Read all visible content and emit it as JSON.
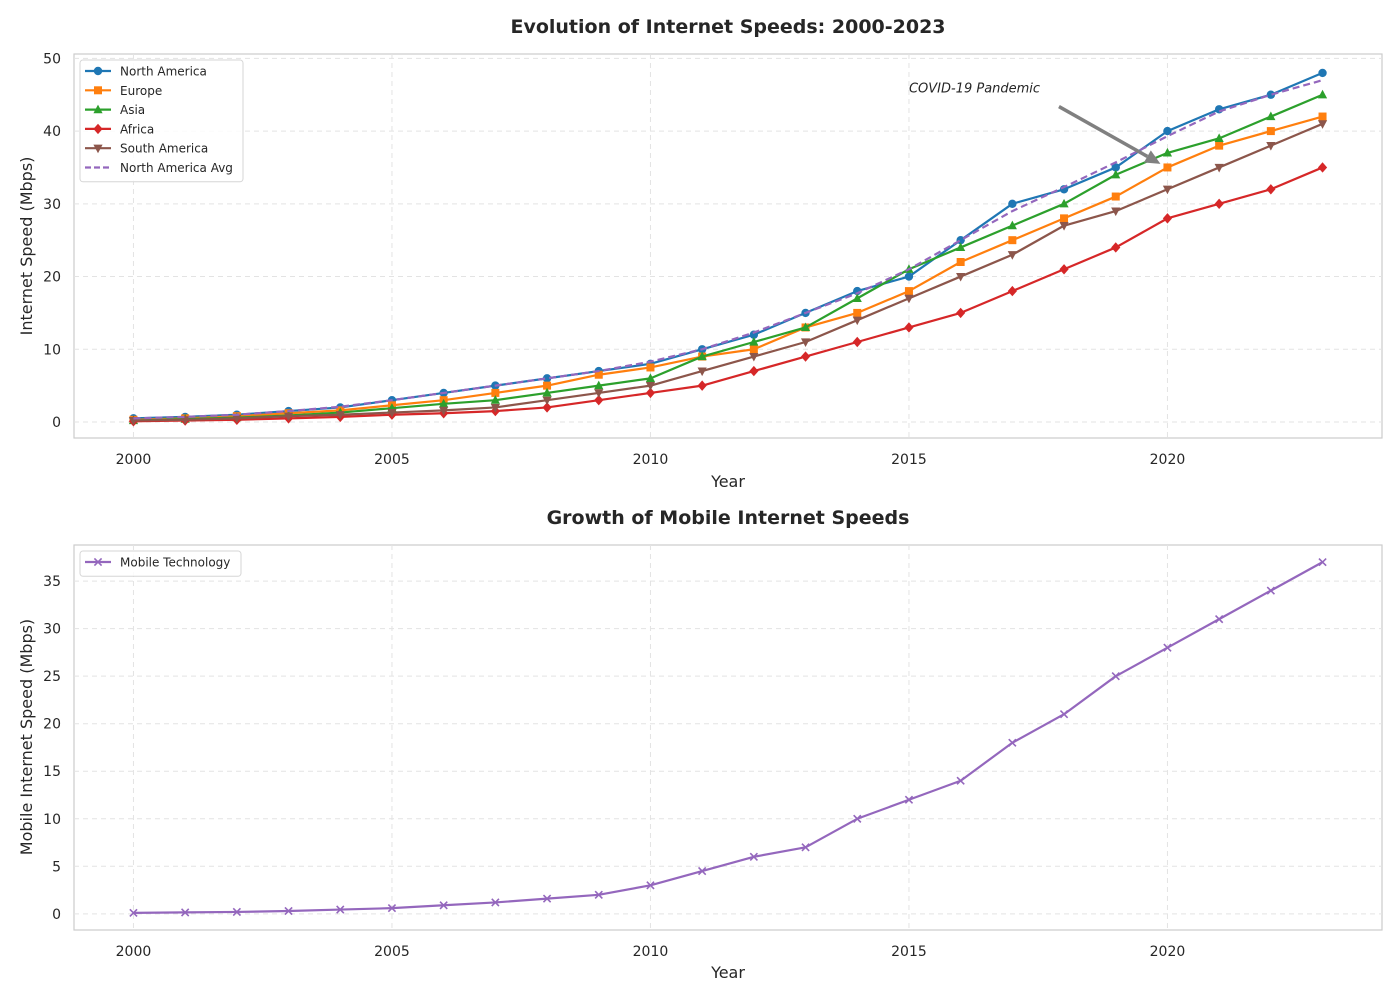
{
  "chart_data": [
    {
      "type": "line",
      "title": "Evolution of Internet Speeds: 2000-2023",
      "xlabel": "Year",
      "ylabel": "Internet Speed (Mbps)",
      "xlim": [
        1998.85,
        2024.15
      ],
      "ylim": [
        -2.2,
        50.6
      ],
      "xticks": [
        2000,
        2005,
        2010,
        2015,
        2020
      ],
      "yticks": [
        0,
        10,
        20,
        30,
        40,
        50
      ],
      "grid": true,
      "legend": "upper left",
      "x": [
        2000,
        2001,
        2002,
        2003,
        2004,
        2005,
        2006,
        2007,
        2008,
        2009,
        2010,
        2011,
        2012,
        2013,
        2014,
        2015,
        2016,
        2017,
        2018,
        2019,
        2020,
        2021,
        2022,
        2023
      ],
      "series": [
        {
          "name": "North America",
          "color": "#1f77b4",
          "marker": "circle",
          "dash": "solid",
          "values": [
            0.5,
            0.7,
            1,
            1.5,
            2,
            3,
            4,
            5,
            6,
            7,
            8,
            10,
            12,
            15,
            18,
            20,
            25,
            30,
            32,
            35,
            40,
            43,
            45,
            48
          ]
        },
        {
          "name": "Europe",
          "color": "#ff7f0e",
          "marker": "square",
          "dash": "solid",
          "values": [
            0.3,
            0.5,
            0.8,
            1.2,
            1.6,
            2.3,
            3,
            4,
            5,
            6.5,
            7.5,
            9,
            10,
            13,
            15,
            18,
            22,
            25,
            28,
            31,
            35,
            38,
            40,
            42
          ]
        },
        {
          "name": "Asia",
          "color": "#2ca02c",
          "marker": "triangle-up",
          "dash": "solid",
          "values": [
            0.2,
            0.4,
            0.6,
            0.9,
            1.3,
            1.9,
            2.5,
            3,
            4,
            5,
            6,
            9,
            11,
            13,
            17,
            21,
            24,
            27,
            30,
            34,
            37,
            39,
            42,
            45
          ]
        },
        {
          "name": "Africa",
          "color": "#d62728",
          "marker": "diamond",
          "dash": "solid",
          "values": [
            0.1,
            0.2,
            0.3,
            0.5,
            0.7,
            1,
            1.2,
            1.5,
            2,
            3,
            4,
            5,
            7,
            9,
            11,
            13,
            15,
            18,
            21,
            24,
            28,
            30,
            32,
            35
          ]
        },
        {
          "name": "South America",
          "color": "#8c564b",
          "marker": "triangle-down",
          "dash": "solid",
          "values": [
            0.2,
            0.3,
            0.5,
            0.8,
            1,
            1.3,
            1.6,
            2,
            3,
            4,
            5,
            7,
            9,
            11,
            14,
            17,
            20,
            23,
            27,
            29,
            32,
            35,
            38,
            41
          ]
        },
        {
          "name": "North America Avg",
          "color": "#9467bd",
          "marker": "none",
          "dash": "dashed",
          "values": [
            0.5,
            0.7,
            1,
            1.5,
            2.1,
            3,
            4,
            5,
            6,
            7,
            8.3,
            10,
            12.3,
            15,
            17.7,
            21,
            25,
            29,
            32.3,
            35.7,
            39.3,
            42.7,
            45,
            47
          ]
        }
      ],
      "annotations": [
        {
          "text": "COVID-19 Pandemic",
          "xy": [
            2020,
            35.5
          ],
          "text_xy": [
            2015,
            45.3
          ]
        }
      ]
    },
    {
      "type": "line",
      "title": "Growth of Mobile Internet Speeds",
      "xlabel": "Year",
      "ylabel": "Mobile Internet Speed (Mbps)",
      "xlim": [
        1998.85,
        2024.15
      ],
      "ylim": [
        -1.7,
        38.8
      ],
      "xticks": [
        2000,
        2005,
        2010,
        2015,
        2020
      ],
      "yticks": [
        0,
        5,
        10,
        15,
        20,
        25,
        30,
        35
      ],
      "grid": true,
      "legend": "upper left",
      "x": [
        2000,
        2001,
        2002,
        2003,
        2004,
        2005,
        2006,
        2007,
        2008,
        2009,
        2010,
        2011,
        2012,
        2013,
        2014,
        2015,
        2016,
        2017,
        2018,
        2019,
        2020,
        2021,
        2022,
        2023
      ],
      "series": [
        {
          "name": "Mobile Technology",
          "color": "#9467bd",
          "marker": "x",
          "dash": "solid",
          "values": [
            0.1,
            0.15,
            0.2,
            0.3,
            0.45,
            0.6,
            0.9,
            1.2,
            1.6,
            2,
            3,
            4.5,
            6,
            7,
            10,
            12,
            14,
            18,
            21,
            25,
            28,
            31,
            34,
            37
          ]
        }
      ],
      "annotations": []
    }
  ]
}
